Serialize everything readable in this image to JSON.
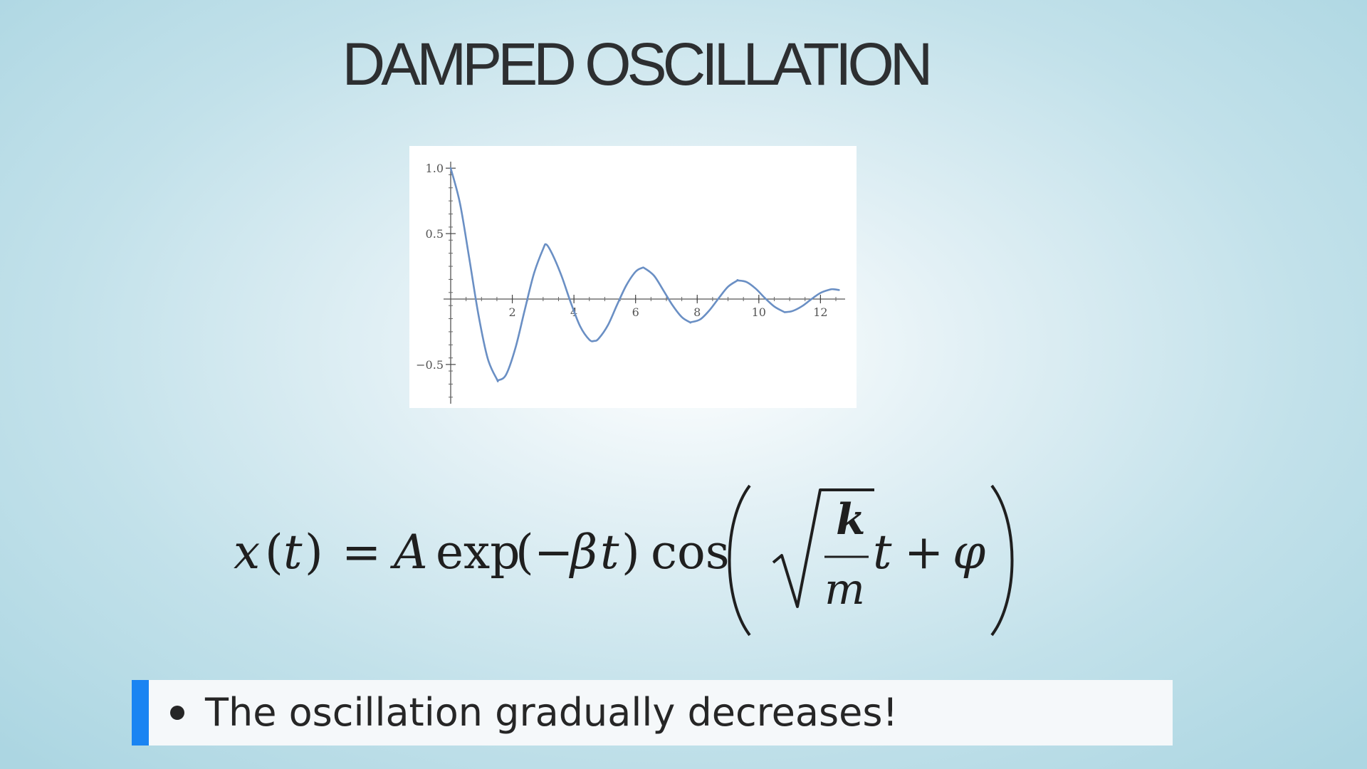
{
  "slide": {
    "title": "DAMPED OSCILLATION"
  },
  "chart_data": {
    "type": "line",
    "title": "",
    "xlabel": "",
    "ylabel": "",
    "xlim": [
      0,
      12.8
    ],
    "ylim": [
      -0.8,
      1.05
    ],
    "x_ticks": [
      2,
      4,
      6,
      8,
      10,
      12
    ],
    "x_tick_labels": [
      "2",
      "4",
      "6",
      "8",
      "10",
      "12"
    ],
    "y_ticks": [
      1.0,
      0.5,
      -0.5
    ],
    "y_tick_labels": [
      "1.0",
      "0.5",
      "−0.5"
    ],
    "grid": false,
    "line_color": "#6a8fc4",
    "series": [
      {
        "x": [
          0,
          0.3,
          0.6,
          0.9,
          1.2,
          1.5,
          1.5525,
          1.8,
          2.1,
          2.4,
          2.7,
          3.0,
          3.105,
          3.3,
          3.6,
          3.9,
          4.2,
          4.5,
          4.6575,
          4.8,
          5.1,
          5.4,
          5.7,
          6.0,
          6.21,
          6.3,
          6.6,
          6.9,
          7.2,
          7.5,
          7.7625,
          7.8,
          8.1,
          8.4,
          8.7,
          9.0,
          9.3,
          9.315,
          9.6,
          9.9,
          10.2,
          10.5,
          10.8,
          10.8675,
          11.1,
          11.4,
          11.7,
          12.0,
          12.3,
          12.42,
          12.6
        ],
        "y": [
          1.0,
          0.733,
          0.315,
          -0.119,
          -0.453,
          -0.613,
          -0.62,
          -0.577,
          -0.375,
          -0.087,
          0.193,
          0.383,
          0.417,
          0.342,
          0.175,
          -0.029,
          -0.208,
          -0.311,
          -0.32,
          -0.303,
          -0.201,
          -0.044,
          0.105,
          0.209,
          0.238,
          0.234,
          0.178,
          0.067,
          -0.048,
          -0.138,
          -0.177,
          -0.177,
          -0.155,
          -0.085,
          0.007,
          0.094,
          0.141,
          0.142,
          0.13,
          0.079,
          0.007,
          -0.057,
          -0.096,
          -0.1,
          -0.091,
          -0.055,
          -0.002,
          0.047,
          0.072,
          0.075,
          0.069
        ]
      }
    ]
  },
  "formula": {
    "lhs": "x",
    "lhs_paren_open": "(",
    "lhs_var": "t",
    "lhs_paren_close": ")",
    "equals": "=",
    "amplitude": "A",
    "exp": "exp",
    "exp_paren_open": "(",
    "minus": "−",
    "beta": "β",
    "exp_var": "t",
    "exp_paren_close": ")",
    "cos": "cos",
    "numerator": "k",
    "denominator": "m",
    "time": "t",
    "plus": "+",
    "phase": "φ"
  },
  "bullet": {
    "text": "The oscillation gradually decreases!"
  }
}
